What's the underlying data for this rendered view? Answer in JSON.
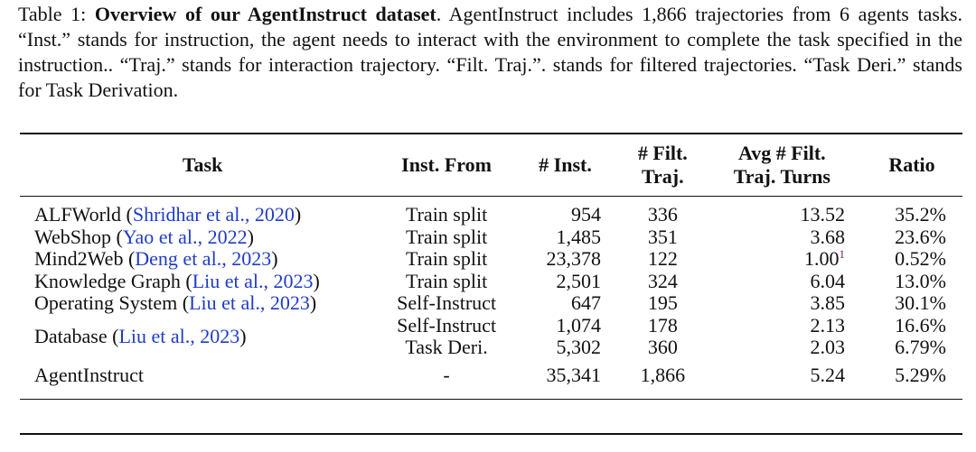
{
  "caption": {
    "label": "Table 1:",
    "title": "Overview of our AgentInstruct dataset",
    "body": ". AgentInstruct includes 1,866 trajectories from 6 agents tasks. “Inst.” stands for instruction, the agent needs to interact with the environment to complete the task specified in the instruction.. “Traj.” stands for interaction trajectory. “Filt. Traj.”. stands for filtered trajectories. “Task Deri.” stands for Task Derivation."
  },
  "table": {
    "headers": {
      "task": "Task",
      "inst_from": "Inst. From",
      "num_inst": "# Inst.",
      "filt_traj_l1": "# Filt.",
      "filt_traj_l2": "Traj.",
      "avg_turns_l1": "Avg # Filt.",
      "avg_turns_l2": "Traj. Turns",
      "ratio": "Ratio"
    },
    "rows": [
      {
        "task": "ALFWorld",
        "cite_authors": "Shridhar et al.",
        "cite_sep": ", ",
        "cite_year": "2020",
        "inst_from": "Train split",
        "num_inst": "954",
        "filt_traj": "336",
        "avg_turns": "13.52",
        "footnote": "",
        "ratio": "35.2%"
      },
      {
        "task": "WebShop",
        "cite_authors": "Yao et al.",
        "cite_sep": ", ",
        "cite_year": "2022",
        "inst_from": "Train split",
        "num_inst": "1,485",
        "filt_traj": "351",
        "avg_turns": "3.68",
        "footnote": "",
        "ratio": "23.6%"
      },
      {
        "task": "Mind2Web",
        "cite_authors": "Deng et al.",
        "cite_sep": ", ",
        "cite_year": "2023",
        "inst_from": "Train split",
        "num_inst": "23,378",
        "filt_traj": "122",
        "avg_turns": "1.00",
        "footnote": "1",
        "ratio": "0.52%"
      },
      {
        "task": "Knowledge Graph",
        "cite_authors": "Liu et al.",
        "cite_sep": ", ",
        "cite_year": "2023",
        "inst_from": "Train split",
        "num_inst": "2,501",
        "filt_traj": "324",
        "avg_turns": "6.04",
        "footnote": "",
        "ratio": "13.0%"
      },
      {
        "task": "Operating System",
        "cite_authors": "Liu et al.",
        "cite_sep": ", ",
        "cite_year": "2023",
        "inst_from": "Self-Instruct",
        "num_inst": "647",
        "filt_traj": "195",
        "avg_turns": "3.85",
        "footnote": "",
        "ratio": "30.1%"
      }
    ],
    "database": {
      "task": "Database",
      "cite_authors": "Liu et al.",
      "cite_sep": ", ",
      "cite_year": "2023",
      "sub": [
        {
          "inst_from": "Self-Instruct",
          "num_inst": "1,074",
          "filt_traj": "178",
          "avg_turns": "2.13",
          "ratio": "16.6%"
        },
        {
          "inst_from": "Task Deri.",
          "num_inst": "5,302",
          "filt_traj": "360",
          "avg_turns": "2.03",
          "ratio": "6.79%"
        }
      ]
    },
    "total": {
      "task": "AgentInstruct",
      "inst_from": "-",
      "num_inst": "35,341",
      "filt_traj": "1,866",
      "avg_turns": "5.24",
      "ratio": "5.29%"
    }
  }
}
